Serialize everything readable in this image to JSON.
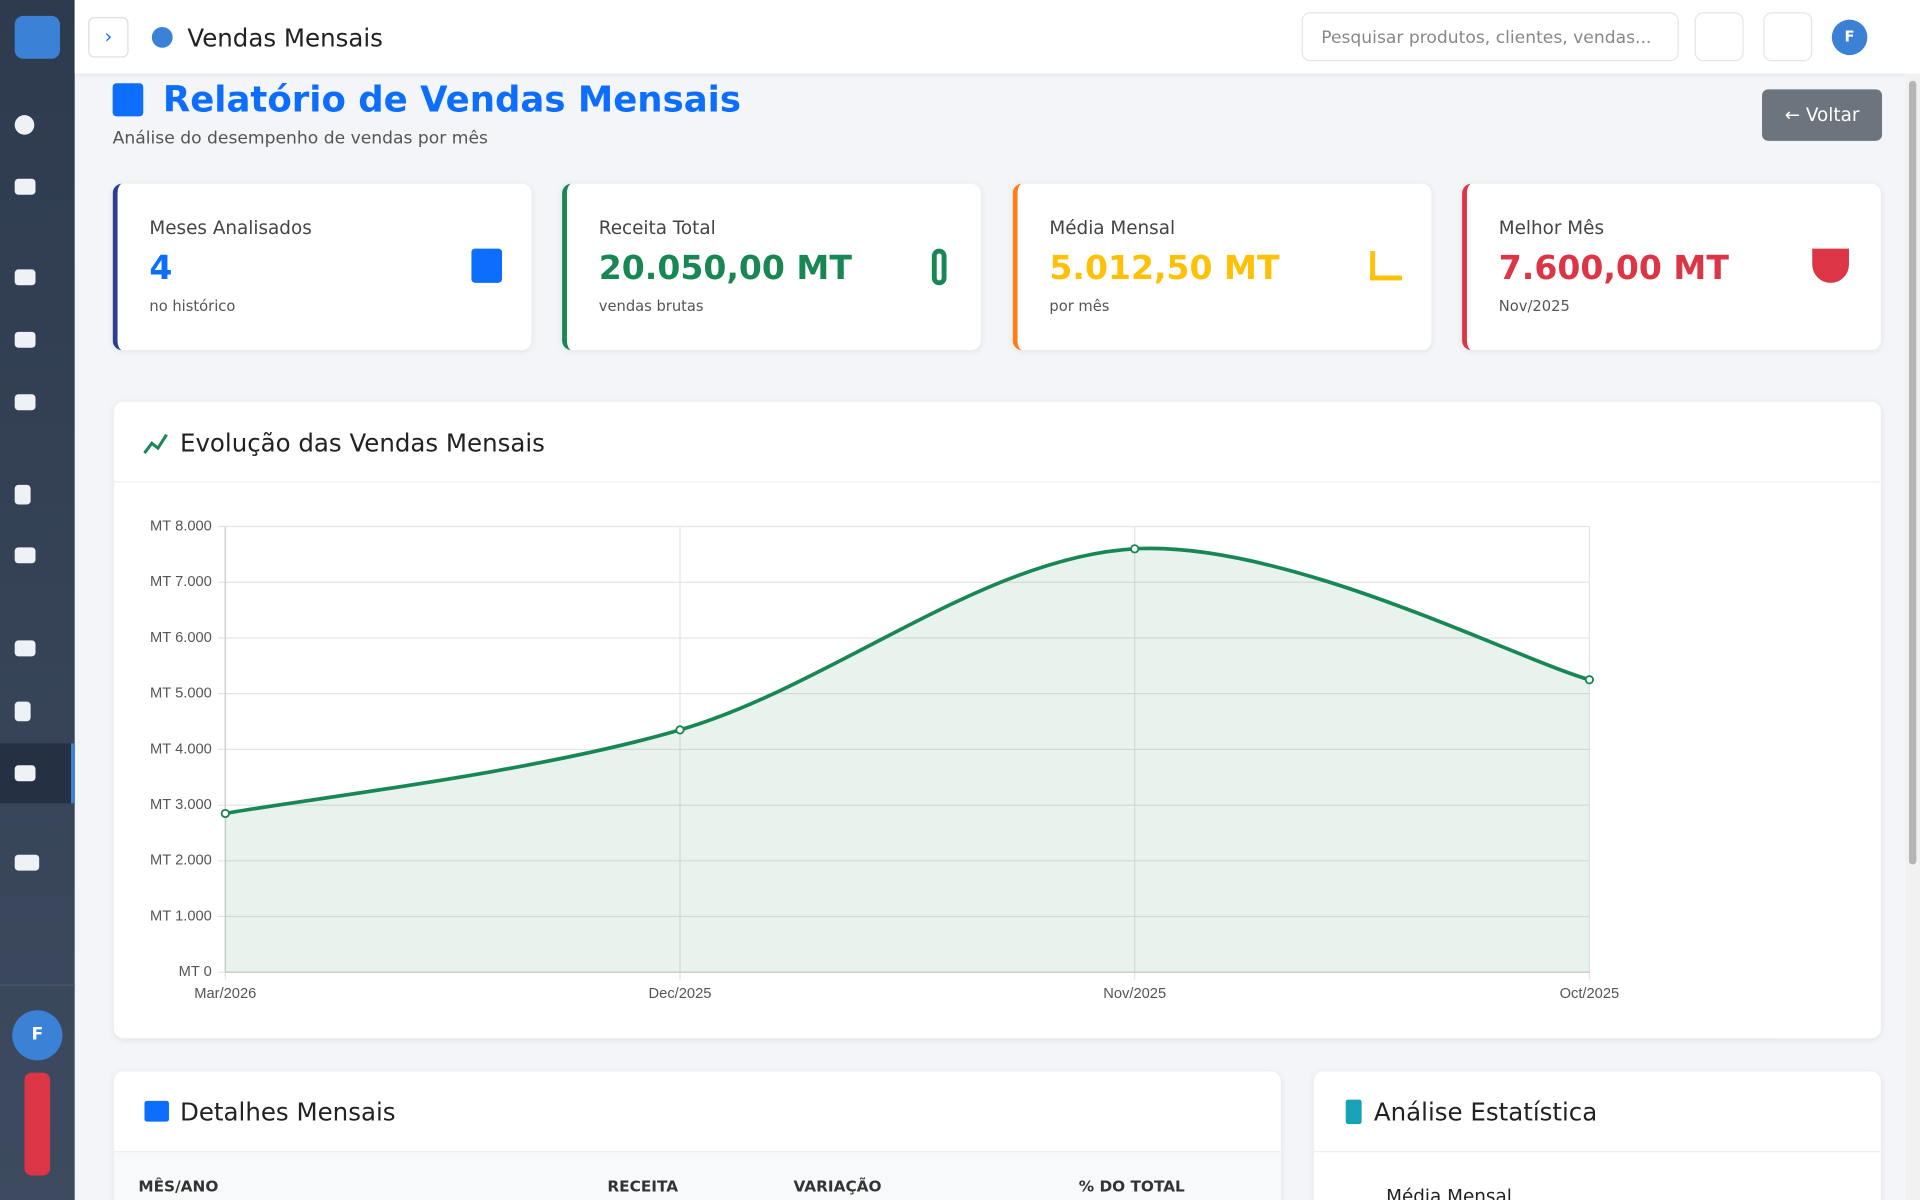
{
  "header": {
    "title": "Vendas Mensais",
    "search_placeholder": "Pesquisar produtos, clientes, vendas...",
    "avatar": "F"
  },
  "sidebar": {
    "avatar": "F"
  },
  "page_header": {
    "title": "Relatório de Vendas Mensais",
    "subtitle": "Análise do desempenho de vendas por mês",
    "back_button": "Voltar"
  },
  "stat_cards": [
    {
      "label": "Meses Analisados",
      "value": "4",
      "note": "no histórico"
    },
    {
      "label": "Receita Total",
      "value": "20.050,00 MT",
      "note": "vendas brutas"
    },
    {
      "label": "Média Mensal",
      "value": "5.012,50 MT",
      "note": "por mês"
    },
    {
      "label": "Melhor Mês",
      "value": "7.600,00 MT",
      "note": "Nov/2025"
    }
  ],
  "chart_data": {
    "type": "line",
    "title": "Evolução das Vendas Mensais",
    "categories": [
      "Mar/2026",
      "Dec/2025",
      "Nov/2025",
      "Oct/2025"
    ],
    "values": [
      2850,
      4350,
      7600,
      5250
    ],
    "color": "#198754",
    "grid": true,
    "ylim": [
      0,
      8000
    ],
    "yticks": [
      {
        "value": 0,
        "label": "MT 0"
      },
      {
        "value": 1000,
        "label": "MT 1.000"
      },
      {
        "value": 2000,
        "label": "MT 2.000"
      },
      {
        "value": 3000,
        "label": "MT 3.000"
      },
      {
        "value": 4000,
        "label": "MT 4.000"
      },
      {
        "value": 5000,
        "label": "MT 5.000"
      },
      {
        "value": 6000,
        "label": "MT 6.000"
      },
      {
        "value": 7000,
        "label": "MT 7.000"
      },
      {
        "value": 8000,
        "label": "MT 8.000"
      }
    ]
  },
  "details": {
    "title": "Detalhes Mensais",
    "columns": [
      "MÊS/ANO",
      "RECEITA",
      "VARIAÇÃO",
      "% DO TOTAL"
    ]
  },
  "stats": {
    "title": "Análise Estatística",
    "items": [
      "Média Mensal"
    ]
  }
}
